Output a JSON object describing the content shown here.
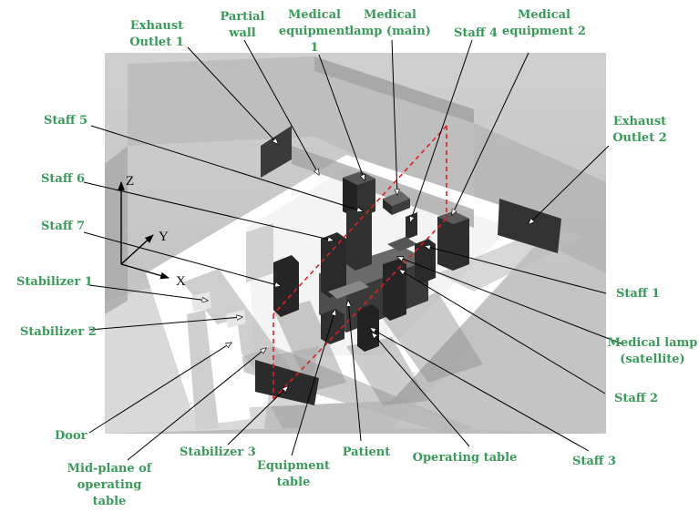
{
  "labels": {
    "exhaust_outlet_1": [
      "Exhaust",
      "Outlet 1"
    ],
    "partial_wall": [
      "Partial",
      "wall"
    ],
    "medical_equipment_1": [
      "Medical",
      "equipment",
      "1"
    ],
    "medical_lamp_main": [
      "Medical",
      "lamp (main)"
    ],
    "staff_4": "Staff 4",
    "medical_equipment_2": [
      "Medical",
      "equipment 2"
    ],
    "exhaust_outlet_2": [
      "Exhaust",
      "Outlet 2"
    ],
    "staff_5": "Staff 5",
    "staff_6": "Staff 6",
    "staff_7": "Staff 7",
    "stabilizer_1": "Stabilizer 1",
    "stabilizer_2": "Stabilizer 2",
    "door": "Door",
    "mid_plane": [
      "Mid-plane of",
      "operating",
      "table"
    ],
    "stabilizer_3": "Stabilizer 3",
    "equipment_table": [
      "Equipment",
      "table"
    ],
    "patient": "Patient",
    "operating_table": "Operating table",
    "staff_3": "Staff 3",
    "staff_2": "Staff 2",
    "medical_lamp_satellite": [
      "Medical lamp",
      "(satellite)"
    ],
    "staff_1": "Staff 1"
  },
  "axes": {
    "x": "X",
    "y": "Y",
    "z": "Z"
  },
  "colors": {
    "label": "#3a9a5a",
    "object": "#2b2b2b",
    "midplane": "#e02020"
  }
}
